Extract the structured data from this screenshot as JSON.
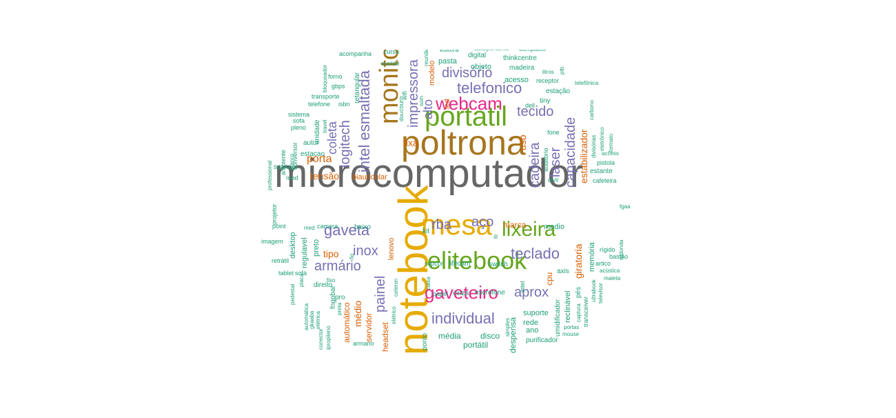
{
  "colors": {
    "gray": "#666666",
    "gold": "#E6AB02",
    "brown": "#A6761D",
    "green": "#66A61E",
    "magenta": "#E7298A",
    "purple": "#7570B3",
    "orange": "#D95F02",
    "teal": "#1B9E77"
  },
  "words": [
    {
      "text": "microcomputador",
      "color": "gray"
    },
    {
      "text": "notebook",
      "color": "gold"
    },
    {
      "text": "poltrona",
      "color": "brown"
    },
    {
      "text": "mesa",
      "color": "gold"
    },
    {
      "text": "monitor",
      "color": "brown"
    },
    {
      "text": "portatil",
      "color": "green"
    },
    {
      "text": "elitebook",
      "color": "green"
    },
    {
      "text": "webcam",
      "color": "magenta"
    },
    {
      "text": "lixeira",
      "color": "green"
    },
    {
      "text": "gaveteiro",
      "color": "magenta"
    },
    {
      "text": "gaveta",
      "color": "purple"
    },
    {
      "text": "telefonico",
      "color": "purple"
    },
    {
      "text": "intel esmaltada",
      "color": "purple"
    },
    {
      "text": "teclado",
      "color": "purple"
    },
    {
      "text": "individual",
      "color": "purple"
    },
    {
      "text": "impressora",
      "color": "purple"
    },
    {
      "text": "divisório",
      "color": "purple"
    },
    {
      "text": "tecido",
      "color": "purple"
    },
    {
      "text": "inox",
      "color": "purple"
    },
    {
      "text": "armário",
      "color": "purple"
    },
    {
      "text": "painel",
      "color": "purple"
    },
    {
      "text": "logitech",
      "color": "purple"
    },
    {
      "text": "cadeira",
      "color": "purple"
    },
    {
      "text": "laser",
      "color": "purple"
    },
    {
      "text": "capacidade",
      "color": "purple"
    },
    {
      "text": "aprox",
      "color": "purple"
    },
    {
      "text": "rba",
      "color": "purple"
    },
    {
      "text": "aço",
      "color": "purple"
    },
    {
      "text": "coleta",
      "color": "purple"
    },
    {
      "text": "alto",
      "color": "purple"
    },
    {
      "text": "porta",
      "color": "orange"
    },
    {
      "text": "tensão",
      "color": "orange"
    },
    {
      "text": "fixa",
      "color": "orange"
    },
    {
      "text": "tipo",
      "color": "orange"
    },
    {
      "text": "médio",
      "color": "orange"
    },
    {
      "text": "estabilizador",
      "color": "orange"
    },
    {
      "text": "giratoria",
      "color": "orange"
    },
    {
      "text": "usb",
      "color": "orange"
    },
    {
      "text": "marca",
      "color": "orange"
    },
    {
      "text": "cpu",
      "color": "orange"
    },
    {
      "text": "automático",
      "color": "orange"
    },
    {
      "text": "servidor",
      "color": "orange"
    },
    {
      "text": "headset",
      "color": "orange"
    },
    {
      "text": "lenovo",
      "color": "orange"
    },
    {
      "text": "biauricular",
      "color": "orange"
    },
    {
      "text": "modelo",
      "color": "orange"
    },
    {
      "text": "led",
      "color": "orange"
    },
    {
      "text": "pasta",
      "color": "teal"
    },
    {
      "text": "objeto",
      "color": "teal"
    },
    {
      "text": "acesso",
      "color": "teal"
    },
    {
      "text": "madeira",
      "color": "teal"
    },
    {
      "text": "estação",
      "color": "teal"
    },
    {
      "text": "digital",
      "color": "teal"
    },
    {
      "text": "thinkcentre",
      "color": "teal"
    },
    {
      "text": "autoportante",
      "color": "teal"
    },
    {
      "text": "compacto",
      "color": "teal"
    },
    {
      "text": "editora",
      "color": "teal"
    },
    {
      "text": "acompanha",
      "color": "teal"
    },
    {
      "text": "curso",
      "color": "teal"
    },
    {
      "text": "ouvido",
      "color": "teal"
    },
    {
      "text": "reunião",
      "color": "teal"
    },
    {
      "text": "retangular",
      "color": "teal"
    },
    {
      "text": "bloqueador",
      "color": "teal"
    },
    {
      "text": "forno",
      "color": "teal"
    },
    {
      "text": "gbps",
      "color": "teal"
    },
    {
      "text": "transporte",
      "color": "teal"
    },
    {
      "text": "telefone",
      "color": "teal"
    },
    {
      "text": "isbn",
      "color": "teal"
    },
    {
      "text": "unidade",
      "color": "teal"
    },
    {
      "text": "travel",
      "color": "teal"
    },
    {
      "text": "sistema",
      "color": "teal"
    },
    {
      "text": "sofa",
      "color": "teal"
    },
    {
      "text": "pleno",
      "color": "teal"
    },
    {
      "text": "conversor",
      "color": "teal"
    },
    {
      "text": "branco",
      "color": "teal"
    },
    {
      "text": "ambiente",
      "color": "teal"
    },
    {
      "text": "professional",
      "color": "teal"
    },
    {
      "text": "autor",
      "color": "teal"
    },
    {
      "text": "estacao",
      "color": "teal"
    },
    {
      "text": "scanner",
      "color": "teal"
    },
    {
      "text": "mod",
      "color": "teal"
    },
    {
      "text": "couro",
      "color": "teal"
    },
    {
      "text": "wifi",
      "color": "teal"
    },
    {
      "text": "dou",
      "color": "teal"
    },
    {
      "text": "som",
      "color": "teal"
    },
    {
      "text": "dell",
      "color": "teal"
    },
    {
      "text": "tiny",
      "color": "teal"
    },
    {
      "text": "litros",
      "color": "teal"
    },
    {
      "text": "ptb",
      "color": "teal"
    },
    {
      "text": "receptor",
      "color": "teal"
    },
    {
      "text": "telefônica",
      "color": "teal"
    },
    {
      "text": "carbono",
      "color": "teal"
    },
    {
      "text": "divisórias",
      "color": "teal"
    },
    {
      "text": "eletrônico",
      "color": "teal"
    },
    {
      "text": "formato",
      "color": "teal"
    },
    {
      "text": "access",
      "color": "teal"
    },
    {
      "text": "pistola",
      "color": "teal"
    },
    {
      "text": "estante",
      "color": "teal"
    },
    {
      "text": "cafeteira",
      "color": "teal"
    },
    {
      "text": "fgaa",
      "color": "teal"
    },
    {
      "text": "fone",
      "color": "teal"
    },
    {
      "text": "auditório",
      "color": "teal"
    },
    {
      "text": "civil",
      "color": "teal"
    },
    {
      "text": "projetor",
      "color": "teal"
    },
    {
      "text": "point",
      "color": "teal"
    },
    {
      "text": "med",
      "color": "teal"
    },
    {
      "text": "camera",
      "color": "teal"
    },
    {
      "text": "baixo",
      "color": "teal"
    },
    {
      "text": "desktop",
      "color": "teal"
    },
    {
      "text": "preto",
      "color": "teal"
    },
    {
      "text": "regulavel",
      "color": "teal"
    },
    {
      "text": "imagem",
      "color": "teal"
    },
    {
      "text": "fio",
      "color": "teal"
    },
    {
      "text": "retrátil",
      "color": "teal"
    },
    {
      "text": "kit",
      "color": "teal"
    },
    {
      "text": "ltr",
      "color": "teal"
    },
    {
      "text": "medio",
      "color": "teal"
    },
    {
      "text": "rígido",
      "color": "teal"
    },
    {
      "text": "bastão",
      "color": "teal"
    },
    {
      "text": "redonda",
      "color": "teal"
    },
    {
      "text": "memória",
      "color": "teal"
    },
    {
      "text": "artico",
      "color": "teal"
    },
    {
      "text": "acústica",
      "color": "teal"
    },
    {
      "text": "maleta",
      "color": "teal"
    },
    {
      "text": "tablet",
      "color": "teal"
    },
    {
      "text": "pedestal",
      "color": "teal"
    },
    {
      "text": "sofá",
      "color": "teal"
    },
    {
      "text": "placa",
      "color": "teal"
    },
    {
      "text": "automática",
      "color": "teal"
    },
    {
      "text": "direito",
      "color": "teal"
    },
    {
      "text": "fixo",
      "color": "teal"
    },
    {
      "text": "pro",
      "color": "teal"
    },
    {
      "text": "gkaaba",
      "color": "teal"
    },
    {
      "text": "elétrica",
      "color": "teal"
    },
    {
      "text": "conector",
      "color": "teal"
    },
    {
      "text": "ipropileno",
      "color": "teal"
    },
    {
      "text": "preta",
      "color": "teal"
    },
    {
      "text": "fngobar",
      "color": "teal"
    },
    {
      "text": "armario",
      "color": "teal"
    },
    {
      "text": "elétrico",
      "color": "teal"
    },
    {
      "text": "celeron",
      "color": "teal"
    },
    {
      "text": "supcor",
      "color": "teal"
    },
    {
      "text": "caixa",
      "color": "teal"
    },
    {
      "text": "lifecam",
      "color": "teal"
    },
    {
      "text": "switch",
      "color": "teal"
    },
    {
      "text": "papel",
      "color": "teal"
    },
    {
      "text": "cinza",
      "color": "teal"
    },
    {
      "text": "microfone",
      "color": "teal"
    },
    {
      "text": "intel",
      "color": "teal"
    },
    {
      "text": "axis",
      "color": "teal"
    },
    {
      "text": "umidificador",
      "color": "teal"
    },
    {
      "text": "reclinável",
      "color": "teal"
    },
    {
      "text": "pés",
      "color": "teal"
    },
    {
      "text": "transceiver",
      "color": "teal"
    },
    {
      "text": "ultrabook",
      "color": "teal"
    },
    {
      "text": "captura",
      "color": "teal"
    },
    {
      "text": "televisor",
      "color": "teal"
    },
    {
      "text": "suporte",
      "color": "teal"
    },
    {
      "text": "rede",
      "color": "teal"
    },
    {
      "text": "ano",
      "color": "teal"
    },
    {
      "text": "portas",
      "color": "teal"
    },
    {
      "text": "mouse",
      "color": "teal"
    },
    {
      "text": "despensa",
      "color": "teal"
    },
    {
      "text": "simples",
      "color": "teal"
    },
    {
      "text": "purificador",
      "color": "teal"
    },
    {
      "text": "disco",
      "color": "teal"
    },
    {
      "text": "média",
      "color": "teal"
    },
    {
      "text": "ponto",
      "color": "teal"
    },
    {
      "text": "portátil",
      "color": "teal"
    }
  ]
}
